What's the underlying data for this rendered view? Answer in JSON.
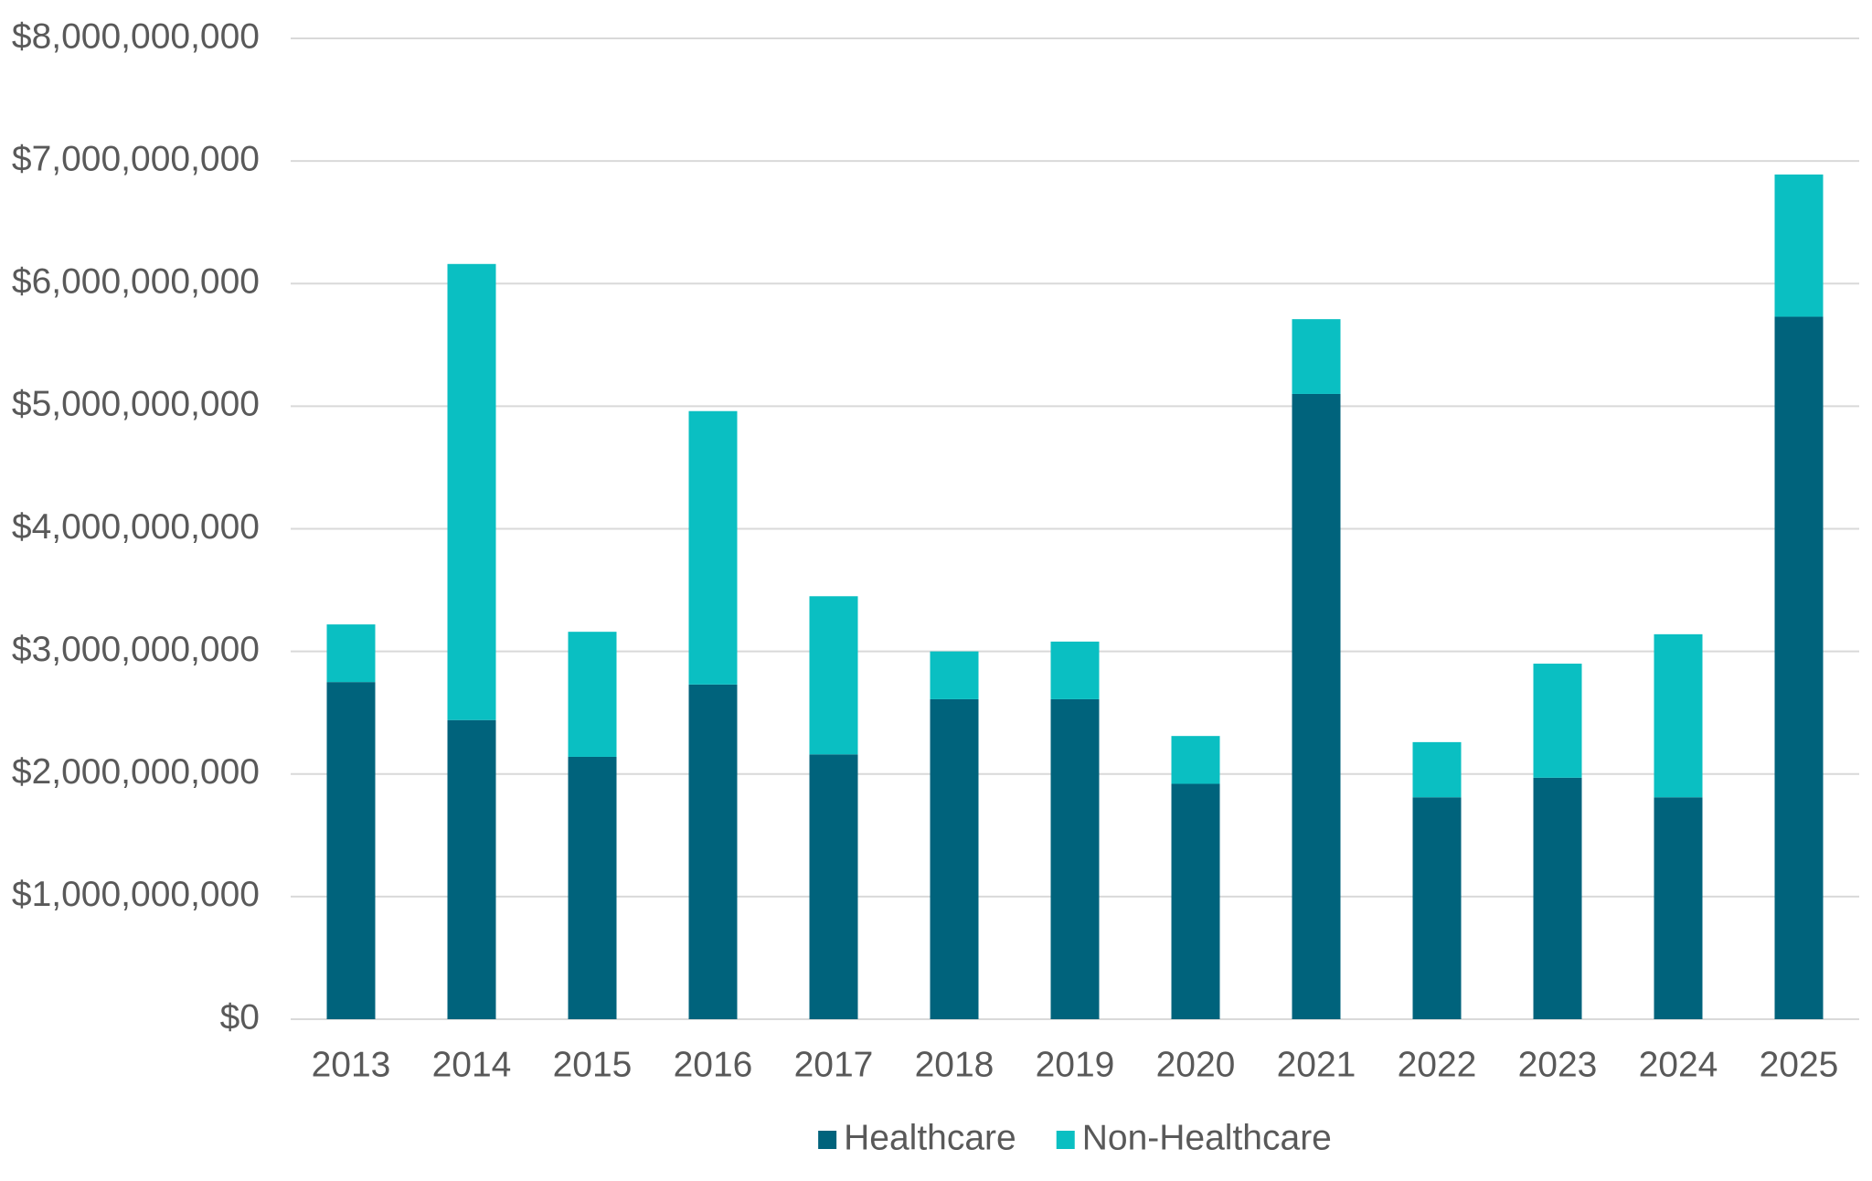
{
  "chart_data": {
    "type": "stacked-bar",
    "categories": [
      "2013",
      "2014",
      "2015",
      "2016",
      "2017",
      "2018",
      "2019",
      "2020",
      "2021",
      "2022",
      "2023",
      "2024",
      "2025"
    ],
    "series": [
      {
        "name": "Healthcare",
        "color": "#00637c",
        "values": [
          2750000000,
          2440000000,
          2140000000,
          2730000000,
          2160000000,
          2610000000,
          2610000000,
          1920000000,
          5100000000,
          1810000000,
          1970000000,
          1810000000,
          5730000000
        ]
      },
      {
        "name": "Non-Healthcare",
        "color": "#0abfc2",
        "values": [
          470000000,
          3720000000,
          1020000000,
          2230000000,
          1290000000,
          390000000,
          470000000,
          390000000,
          610000000,
          450000000,
          930000000,
          1330000000,
          1160000000
        ]
      }
    ],
    "ylim": [
      0,
      8000000000
    ],
    "yticks": [
      {
        "value": 0,
        "label": "$0"
      },
      {
        "value": 1000000000,
        "label": "$1,000,000,000"
      },
      {
        "value": 2000000000,
        "label": "$2,000,000,000"
      },
      {
        "value": 3000000000,
        "label": "$3,000,000,000"
      },
      {
        "value": 4000000000,
        "label": "$4,000,000,000"
      },
      {
        "value": 5000000000,
        "label": "$5,000,000,000"
      },
      {
        "value": 6000000000,
        "label": "$6,000,000,000"
      },
      {
        "value": 7000000000,
        "label": "$7,000,000,000"
      },
      {
        "value": 8000000000,
        "label": "$8,000,000,000"
      }
    ],
    "grid": true,
    "legend": "bottom"
  }
}
